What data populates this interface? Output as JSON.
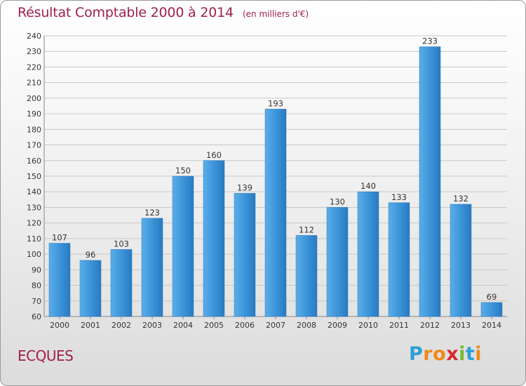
{
  "header": {
    "title": "Résultat Comptable 2000 à 2014",
    "subtitle": "(en milliers d'€)"
  },
  "footer": {
    "town": "ECQUES",
    "logo_letters": [
      "P",
      "r",
      "o",
      "x",
      "i",
      "t",
      "i"
    ],
    "logo_colors": [
      "#2aa0d8",
      "#f08a1c",
      "#f08a1c",
      "#d8282e",
      "#7cb82f",
      "#2aa0d8",
      "#f08a1c"
    ]
  },
  "colors": {
    "bar": "#3a92d8",
    "bar_light": "#5aaee8",
    "bar_dark": "#2a7ac0",
    "text": "#a0204a",
    "grid": "#c8c8c8"
  },
  "chart_data": {
    "type": "bar",
    "title": "Résultat Comptable 2000 à 2014",
    "subtitle": "(en milliers d'€)",
    "categories": [
      "2000",
      "2001",
      "2002",
      "2003",
      "2004",
      "2005",
      "2006",
      "2007",
      "2008",
      "2009",
      "2010",
      "2011",
      "2012",
      "2013",
      "2014"
    ],
    "values": [
      107,
      96,
      103,
      123,
      150,
      160,
      139,
      193,
      112,
      130,
      140,
      133,
      233,
      132,
      69
    ],
    "ylim": [
      60,
      240
    ],
    "ytick_step": 10,
    "grid": true,
    "legend": "none"
  }
}
